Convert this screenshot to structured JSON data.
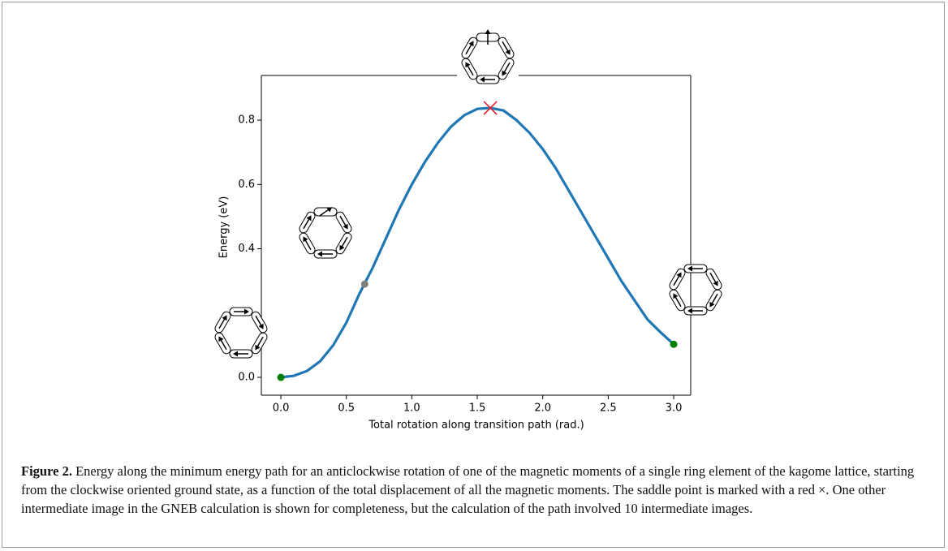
{
  "chart_data": {
    "type": "line",
    "xlabel": "Total rotation along transition path (rad.)",
    "ylabel": "Energy (eV)",
    "x": [
      0.0,
      0.1,
      0.2,
      0.3,
      0.4,
      0.5,
      0.6,
      0.7,
      0.8,
      0.9,
      1.0,
      1.1,
      1.2,
      1.3,
      1.4,
      1.5,
      1.6,
      1.7,
      1.8,
      1.9,
      2.0,
      2.1,
      2.2,
      2.3,
      2.4,
      2.5,
      2.6,
      2.7,
      2.8,
      2.9,
      3.0
    ],
    "values": [
      0,
      0.005,
      0.02,
      0.05,
      0.1,
      0.17,
      0.26,
      0.34,
      0.43,
      0.52,
      0.6,
      0.67,
      0.73,
      0.78,
      0.815,
      0.835,
      0.838,
      0.83,
      0.8,
      0.76,
      0.71,
      0.65,
      0.58,
      0.51,
      0.44,
      0.37,
      0.3,
      0.24,
      0.18,
      0.14,
      0.103
    ],
    "color": "#1f77b4",
    "markers": [
      {
        "x": 0,
        "y": 0,
        "color": "#008000",
        "marker": "o"
      },
      {
        "x": 0.64,
        "y": 0.29,
        "color": "#808080",
        "marker": "o"
      },
      {
        "x": 1.6,
        "y": 0.838,
        "color": "#e8202a",
        "marker": "x"
      },
      {
        "x": 3.0,
        "y": 0.103,
        "color": "#008000",
        "marker": "o"
      }
    ],
    "xlim": [
      -0.149,
      3.13
    ],
    "ylim": [
      -0.0555,
      0.939
    ],
    "xticks": [
      {
        "value": 0,
        "label": "0.0"
      },
      0.5,
      {
        "value": 1,
        "label": "1.0"
      },
      1.5,
      {
        "value": 2,
        "label": "2.0"
      },
      2.5,
      {
        "value": 3,
        "label": "3.0"
      }
    ],
    "yticks": [
      {
        "value": 0,
        "label": "0.0"
      },
      0.4,
      0.6,
      0.8
    ]
  },
  "caption": {
    "label": "Figure 2.",
    "text": "Energy along the minimum energy path for an anticlockwise rotation of one of the magnetic moments of a single ring element of the kagome lattice, starting from the clockwise oriented ground state, as a function of the total displacement of all the magnetic moments. The saddle point is marked with a red ×. One other intermediate image in the GNEB calculation is shown for completeness, but the calculation of the path involved 10 intermediate images."
  }
}
